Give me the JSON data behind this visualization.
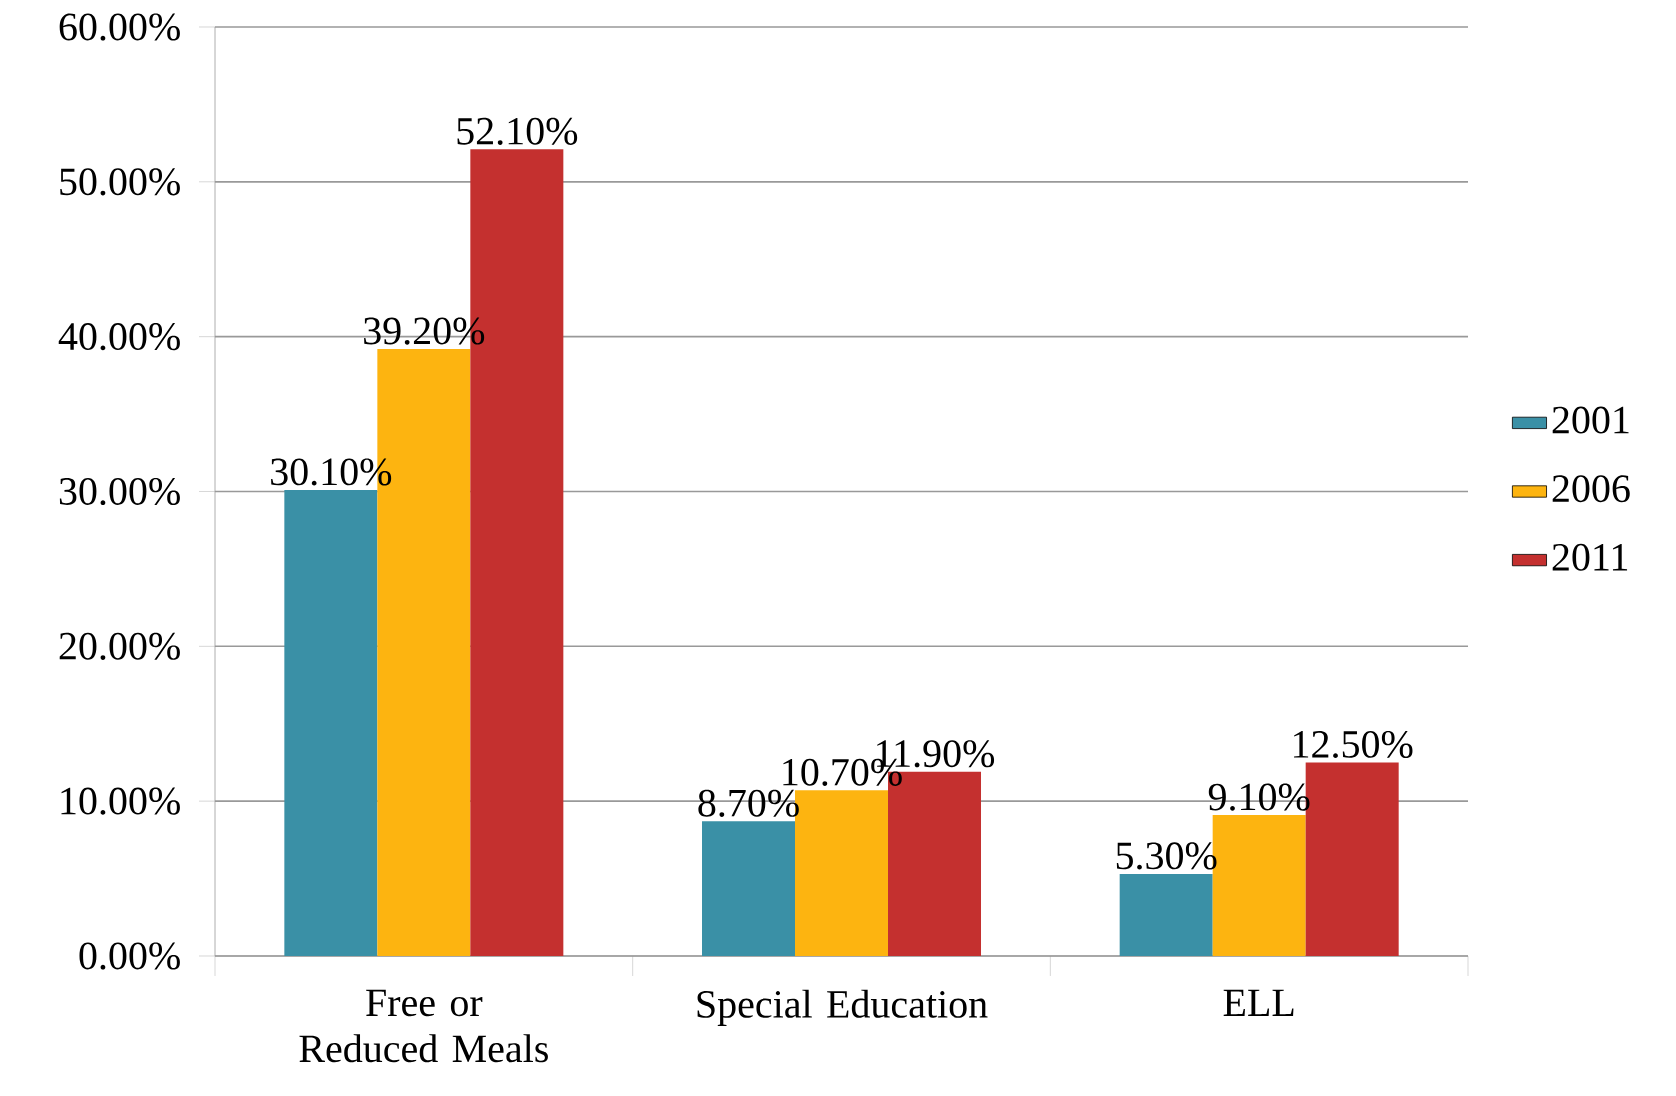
{
  "chart_data": {
    "type": "bar",
    "categories": [
      "Free or Reduced Meals",
      "Special Education",
      "ELL"
    ],
    "series": [
      {
        "name": "2001",
        "color": "#3a90a6",
        "values": [
          30.1,
          8.7,
          5.3
        ],
        "value_labels": [
          "30.10%",
          "8.70%",
          "5.30%"
        ]
      },
      {
        "name": "2006",
        "color": "#fdb410",
        "values": [
          39.2,
          10.7,
          9.1
        ],
        "value_labels": [
          "39.20%",
          "10.70%",
          "9.10%"
        ]
      },
      {
        "name": "2011",
        "color": "#c4302f",
        "values": [
          52.1,
          11.9,
          12.5
        ],
        "value_labels": [
          "52.10%",
          "11.90%",
          "12.50%"
        ]
      }
    ],
    "ylim": [
      0,
      60
    ],
    "yticks": [
      {
        "value": 0,
        "label": "0.00%"
      },
      {
        "value": 10,
        "label": "10.00%"
      },
      {
        "value": 20,
        "label": "20.00%"
      },
      {
        "value": 30,
        "label": "30.00%"
      },
      {
        "value": 40,
        "label": "40.00%"
      },
      {
        "value": 50,
        "label": "50.00%"
      },
      {
        "value": 60,
        "label": "60.00%"
      }
    ],
    "grid": "y",
    "legend": "right"
  }
}
